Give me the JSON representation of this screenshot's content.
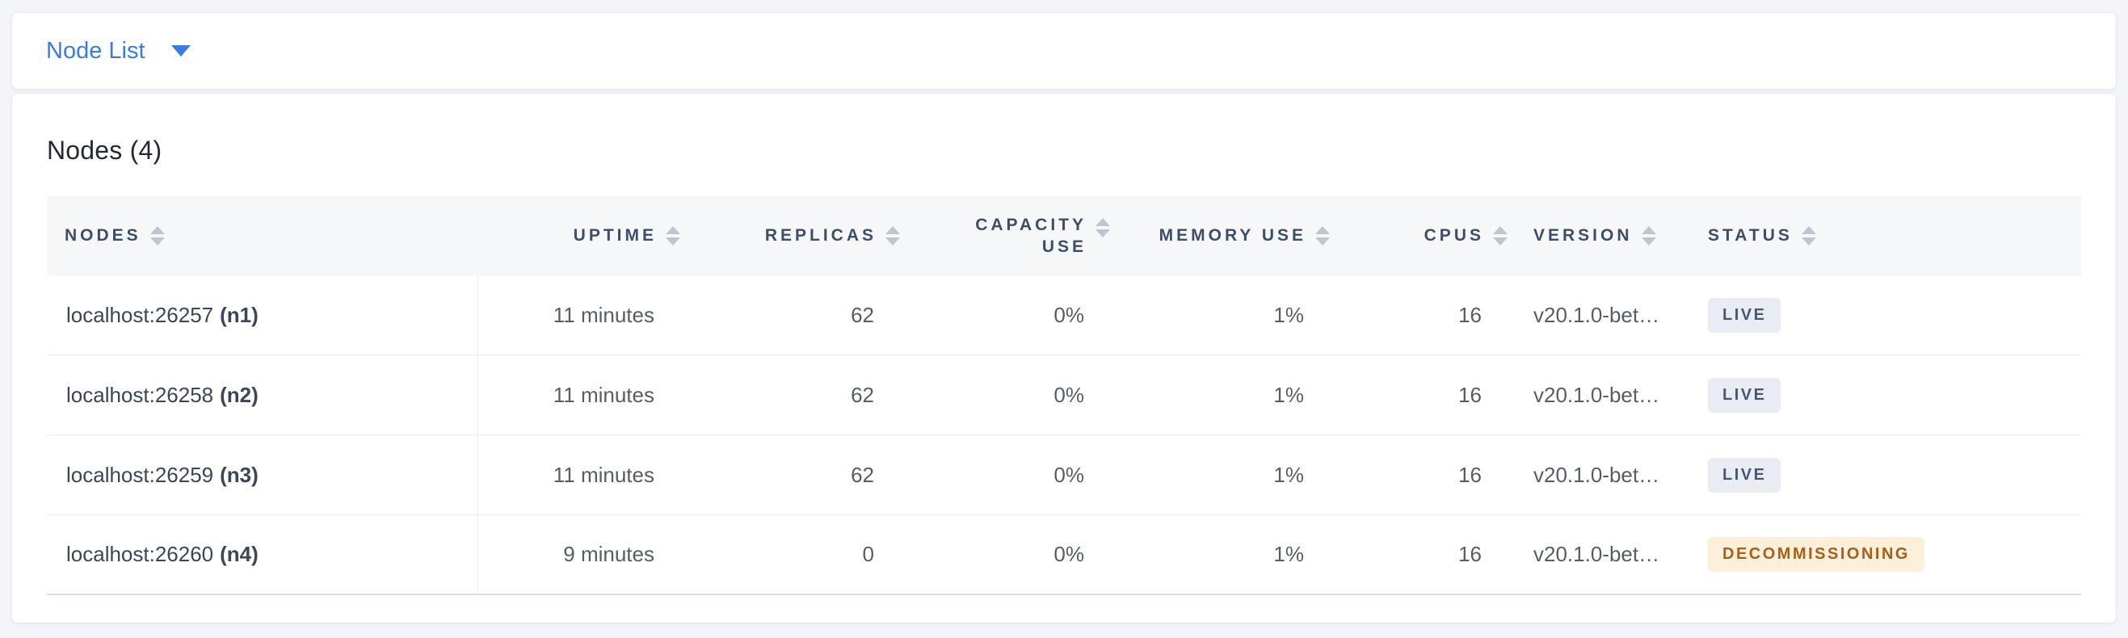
{
  "view_selector": {
    "label": "Node List",
    "caret_icon": "caret-down-icon"
  },
  "summary": {
    "title": "Nodes (4)"
  },
  "colors": {
    "accent_blue": "#3a7ce1",
    "page_background": "#f4f5f9",
    "header_background": "#f6f7f9",
    "live_badge_bg": "#e9ecf2",
    "live_badge_text": "#475870",
    "decommissioning_badge_bg": "#fcf0da",
    "decommissioning_badge_text": "#a5601a"
  },
  "table": {
    "columns": [
      {
        "key": "nodes",
        "label": "NODES"
      },
      {
        "key": "uptime",
        "label": "UPTIME"
      },
      {
        "key": "replicas",
        "label": "REPLICAS"
      },
      {
        "key": "capacity",
        "label": "CAPACITY USE"
      },
      {
        "key": "memory",
        "label": "MEMORY USE"
      },
      {
        "key": "cpus",
        "label": "CPUS"
      },
      {
        "key": "version",
        "label": "VERSION"
      },
      {
        "key": "status",
        "label": "STATUS"
      }
    ],
    "rows": [
      {
        "address": "localhost:26257",
        "name": "(n1)",
        "uptime": "11 minutes",
        "replicas": "62",
        "capacity_use": "0%",
        "memory_use": "1%",
        "cpus": "16",
        "version": "v20.1.0-bet…",
        "status": "LIVE"
      },
      {
        "address": "localhost:26258",
        "name": "(n2)",
        "uptime": "11 minutes",
        "replicas": "62",
        "capacity_use": "0%",
        "memory_use": "1%",
        "cpus": "16",
        "version": "v20.1.0-bet…",
        "status": "LIVE"
      },
      {
        "address": "localhost:26259",
        "name": "(n3)",
        "uptime": "11 minutes",
        "replicas": "62",
        "capacity_use": "0%",
        "memory_use": "1%",
        "cpus": "16",
        "version": "v20.1.0-bet…",
        "status": "LIVE"
      },
      {
        "address": "localhost:26260",
        "name": "(n4)",
        "uptime": "9 minutes",
        "replicas": "0",
        "capacity_use": "0%",
        "memory_use": "1%",
        "cpus": "16",
        "version": "v20.1.0-bet…",
        "status": "DECOMMISSIONING"
      }
    ]
  }
}
